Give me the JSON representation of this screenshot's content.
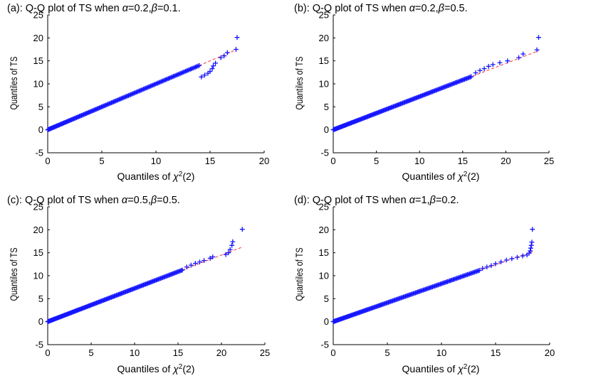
{
  "chart_data": [
    {
      "type": "scatter",
      "panel": "a",
      "title_prefix": "(a): Q-Q plot of TS when ",
      "alpha": "0.2",
      "beta": "0.1",
      "xlabel_prefix": "Quantiles of ",
      "xlabel_sup": "2",
      "xlabel_suffix": "(2)",
      "ylabel": "Quantiles of TS",
      "xlim": [
        0,
        20
      ],
      "ylim": [
        -5,
        25
      ],
      "xticks": [
        "0",
        "5",
        "10",
        "15",
        "20"
      ],
      "yticks": [
        "-5",
        "0",
        "5",
        "10",
        "15",
        "20",
        "25"
      ],
      "x_max_bulk": 14.0,
      "points_tail": [
        [
          14.2,
          11.5
        ],
        [
          14.5,
          11.9
        ],
        [
          14.8,
          12.3
        ],
        [
          15.0,
          12.7
        ],
        [
          15.2,
          13.3
        ],
        [
          15.3,
          13.9
        ],
        [
          15.5,
          14.5
        ],
        [
          16.0,
          15.7
        ],
        [
          16.3,
          16.1
        ],
        [
          16.6,
          16.8
        ],
        [
          17.4,
          17.5
        ],
        [
          17.5,
          20.1
        ]
      ],
      "ref_line": [
        [
          0,
          0
        ],
        [
          17.5,
          17.5
        ]
      ]
    },
    {
      "type": "scatter",
      "panel": "b",
      "title_prefix": "(b): Q-Q plot of TS when ",
      "alpha": "0.2",
      "beta": "0.5",
      "xlabel_prefix": "Quantiles of ",
      "xlabel_sup": "2",
      "xlabel_suffix": "(2)",
      "ylabel": "Quantiles of TS",
      "xlim": [
        0,
        25
      ],
      "ylim": [
        -5,
        25
      ],
      "xticks": [
        "0",
        "5",
        "10",
        "15",
        "20",
        "25"
      ],
      "yticks": [
        "-5",
        "0",
        "5",
        "10",
        "15",
        "20",
        "25"
      ],
      "x_max_bulk": 16.0,
      "points_tail": [
        [
          16.5,
          12.4
        ],
        [
          17.0,
          12.9
        ],
        [
          17.5,
          13.3
        ],
        [
          18.0,
          13.8
        ],
        [
          18.5,
          14.2
        ],
        [
          19.3,
          14.6
        ],
        [
          20.2,
          15.0
        ],
        [
          21.5,
          15.7
        ],
        [
          22.0,
          16.5
        ],
        [
          23.6,
          17.4
        ],
        [
          23.8,
          20.1
        ]
      ],
      "ref_line": [
        [
          0,
          0
        ],
        [
          23.8,
          17.2
        ]
      ]
    },
    {
      "type": "scatter",
      "panel": "c",
      "title_prefix": "(c): Q-Q plot of TS when ",
      "alpha": "0.5",
      "beta": "0.5",
      "xlabel_prefix": "Quantiles of ",
      "xlabel_sup": "2",
      "xlabel_suffix": "(2)",
      "ylabel": "Quantiles of TS",
      "xlim": [
        0,
        25
      ],
      "ylim": [
        -5,
        25
      ],
      "xticks": [
        "0",
        "5",
        "10",
        "15",
        "20",
        "25"
      ],
      "yticks": [
        "-5",
        "0",
        "5",
        "10",
        "15",
        "20",
        "25"
      ],
      "x_max_bulk": 15.5,
      "points_tail": [
        [
          16.0,
          11.9
        ],
        [
          16.5,
          12.3
        ],
        [
          17.0,
          12.7
        ],
        [
          17.5,
          13.0
        ],
        [
          18.0,
          13.3
        ],
        [
          18.7,
          13.8
        ],
        [
          19.0,
          14.1
        ],
        [
          20.5,
          14.6
        ],
        [
          20.8,
          15.0
        ],
        [
          21.0,
          15.7
        ],
        [
          21.2,
          16.6
        ],
        [
          21.3,
          17.4
        ],
        [
          22.4,
          20.1
        ]
      ],
      "ref_line": [
        [
          0,
          0
        ],
        [
          22.5,
          16.3
        ]
      ]
    },
    {
      "type": "scatter",
      "panel": "d",
      "title_prefix": "(d): Q-Q plot of TS when ",
      "alpha": "1",
      "beta": "0.2",
      "xlabel_prefix": "Quantiles of ",
      "xlabel_sup": "2",
      "xlabel_suffix": "(2)",
      "ylabel": "Quantiles of TS",
      "xlim": [
        0,
        20
      ],
      "ylim": [
        -5,
        25
      ],
      "xticks": [
        "0",
        "5",
        "10",
        "15",
        "20"
      ],
      "yticks": [
        "-5",
        "0",
        "5",
        "10",
        "15",
        "20",
        "25"
      ],
      "x_max_bulk": 13.5,
      "points_tail": [
        [
          13.8,
          11.6
        ],
        [
          14.2,
          11.9
        ],
        [
          14.6,
          12.2
        ],
        [
          15.0,
          12.6
        ],
        [
          15.5,
          13.0
        ],
        [
          16.0,
          13.4
        ],
        [
          16.5,
          13.7
        ],
        [
          17.0,
          14.0
        ],
        [
          17.5,
          14.3
        ],
        [
          17.9,
          14.5
        ],
        [
          18.1,
          14.9
        ],
        [
          18.2,
          15.4
        ],
        [
          18.25,
          16.0
        ],
        [
          18.3,
          16.6
        ],
        [
          18.35,
          17.3
        ],
        [
          18.4,
          20.1
        ]
      ],
      "ref_line": [
        [
          0,
          0
        ],
        [
          18.4,
          15.2
        ]
      ]
    }
  ]
}
